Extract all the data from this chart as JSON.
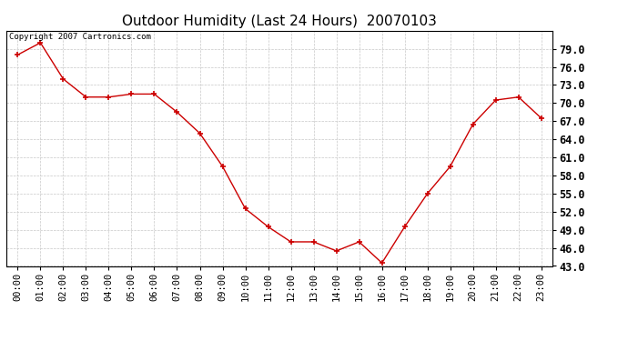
{
  "title": "Outdoor Humidity (Last 24 Hours)  20070103",
  "copyright": "Copyright 2007 Cartronics.com",
  "x_labels": [
    "00:00",
    "01:00",
    "02:00",
    "03:00",
    "04:00",
    "05:00",
    "06:00",
    "07:00",
    "08:00",
    "09:00",
    "10:00",
    "11:00",
    "12:00",
    "13:00",
    "14:00",
    "15:00",
    "16:00",
    "17:00",
    "18:00",
    "19:00",
    "20:00",
    "21:00",
    "22:00",
    "23:00"
  ],
  "y_values": [
    78.0,
    80.0,
    74.0,
    71.0,
    71.0,
    71.5,
    71.5,
    68.5,
    65.0,
    59.5,
    52.5,
    49.5,
    47.0,
    47.0,
    45.5,
    47.0,
    43.5,
    49.5,
    55.0,
    59.5,
    66.5,
    70.5,
    71.0,
    67.5
  ],
  "ylim_min": 43.0,
  "ylim_max": 82.0,
  "yticks": [
    43.0,
    46.0,
    49.0,
    52.0,
    55.0,
    58.0,
    61.0,
    64.0,
    67.0,
    70.0,
    73.0,
    76.0,
    79.0
  ],
  "line_color": "#cc0000",
  "marker": "+",
  "marker_size": 5,
  "marker_linewidth": 1.2,
  "line_width": 1.0,
  "bg_color": "#ffffff",
  "grid_color": "#c8c8c8",
  "title_fontsize": 11,
  "copyright_fontsize": 6.5,
  "tick_fontsize": 7.5,
  "ytick_fontsize": 8.5
}
